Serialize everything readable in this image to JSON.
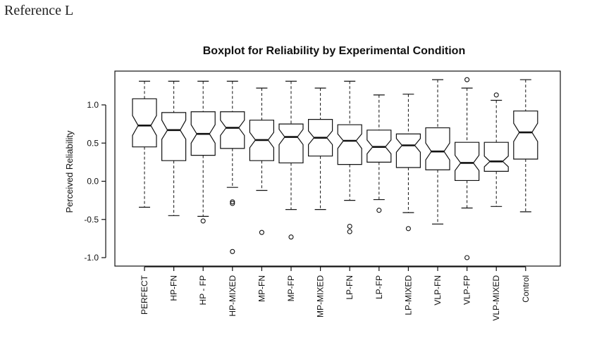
{
  "reference_label": "Reference L",
  "chart_data": {
    "type": "boxplot",
    "notched": true,
    "title": "Boxplot for Reliability by Experimental Condition",
    "xlabel": "",
    "ylabel": "Perceived Reliability",
    "ylim": [
      -1.1,
      1.45
    ],
    "yticks": [
      -1.0,
      -0.5,
      0.0,
      0.5,
      1.0
    ],
    "ytick_labels": [
      "-1.0",
      "-0.5",
      "0.0",
      "0.5",
      "1.0"
    ],
    "categories": [
      "PERFECT",
      "HP-FN",
      "HP - FP",
      "HP-MIXED",
      "MP-FN",
      "MP-FP",
      "MP-MIXED",
      "LP-FN",
      "LP-FP",
      "LP-MIXED",
      "VLP-FN",
      "VLP-FP",
      "VLP-MIXED",
      "Control"
    ],
    "boxes": [
      {
        "whisker_low": -0.34,
        "q1": 0.45,
        "median": 0.73,
        "q3": 1.08,
        "whisker_high": 1.31,
        "notch": [
          0.6,
          0.86
        ],
        "outliers": []
      },
      {
        "whisker_low": -0.45,
        "q1": 0.27,
        "median": 0.67,
        "q3": 0.9,
        "whisker_high": 1.31,
        "notch": [
          0.55,
          0.8
        ],
        "outliers": []
      },
      {
        "whisker_low": -0.46,
        "q1": 0.34,
        "median": 0.62,
        "q3": 0.91,
        "whisker_high": 1.31,
        "notch": [
          0.5,
          0.74
        ],
        "outliers": [
          -0.52
        ]
      },
      {
        "whisker_low": -0.08,
        "q1": 0.43,
        "median": 0.7,
        "q3": 0.91,
        "whisker_high": 1.31,
        "notch": [
          0.6,
          0.8
        ],
        "outliers": [
          -0.27,
          -0.29,
          -0.92
        ]
      },
      {
        "whisker_low": -0.12,
        "q1": 0.27,
        "median": 0.54,
        "q3": 0.8,
        "whisker_high": 1.22,
        "notch": [
          0.44,
          0.64
        ],
        "outliers": [
          -0.67
        ]
      },
      {
        "whisker_low": -0.37,
        "q1": 0.24,
        "median": 0.58,
        "q3": 0.75,
        "whisker_high": 1.31,
        "notch": [
          0.48,
          0.68
        ],
        "outliers": [
          -0.73
        ]
      },
      {
        "whisker_low": -0.37,
        "q1": 0.33,
        "median": 0.57,
        "q3": 0.81,
        "whisker_high": 1.22,
        "notch": [
          0.48,
          0.66
        ],
        "outliers": []
      },
      {
        "whisker_low": -0.25,
        "q1": 0.22,
        "median": 0.53,
        "q3": 0.74,
        "whisker_high": 1.31,
        "notch": [
          0.43,
          0.62
        ],
        "outliers": [
          -0.59,
          -0.66
        ]
      },
      {
        "whisker_low": -0.24,
        "q1": 0.25,
        "median": 0.45,
        "q3": 0.67,
        "whisker_high": 1.13,
        "notch": [
          0.36,
          0.54
        ],
        "outliers": [
          -0.38
        ]
      },
      {
        "whisker_low": -0.41,
        "q1": 0.18,
        "median": 0.47,
        "q3": 0.62,
        "whisker_high": 1.14,
        "notch": [
          0.38,
          0.56
        ],
        "outliers": [
          -0.62
        ]
      },
      {
        "whisker_low": -0.56,
        "q1": 0.15,
        "median": 0.39,
        "q3": 0.7,
        "whisker_high": 1.33,
        "notch": [
          0.28,
          0.5
        ],
        "outliers": []
      },
      {
        "whisker_low": -0.35,
        "q1": 0.01,
        "median": 0.24,
        "q3": 0.51,
        "whisker_high": 1.22,
        "notch": [
          0.14,
          0.34
        ],
        "outliers": [
          1.33,
          -1.0
        ]
      },
      {
        "whisker_low": -0.33,
        "q1": 0.13,
        "median": 0.26,
        "q3": 0.51,
        "whisker_high": 1.06,
        "notch": [
          0.19,
          0.33
        ],
        "outliers": [
          1.13
        ]
      },
      {
        "whisker_low": -0.4,
        "q1": 0.29,
        "median": 0.64,
        "q3": 0.92,
        "whisker_high": 1.33,
        "notch": [
          0.52,
          0.76
        ],
        "outliers": []
      }
    ]
  }
}
